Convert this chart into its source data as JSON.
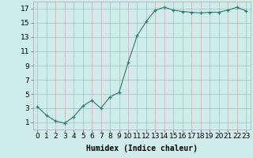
{
  "x": [
    0,
    1,
    2,
    3,
    4,
    5,
    6,
    7,
    8,
    9,
    10,
    11,
    12,
    13,
    14,
    15,
    16,
    17,
    18,
    19,
    20,
    21,
    22,
    23
  ],
  "y": [
    3.2,
    2.0,
    1.2,
    0.9,
    1.8,
    3.3,
    4.1,
    3.0,
    4.6,
    5.2,
    9.4,
    13.2,
    15.2,
    16.8,
    17.2,
    16.8,
    16.6,
    16.5,
    16.4,
    16.5,
    16.5,
    16.8,
    17.2,
    16.7
  ],
  "line_color": "#2d7a6e",
  "marker": "+",
  "marker_color": "#2d7a6e",
  "bg_color": "#ceecea",
  "grid_color": "#d4a8a8",
  "xlabel": "Humidex (Indice chaleur)",
  "xlabel_fontsize": 7,
  "ylabel_ticks": [
    1,
    3,
    5,
    7,
    9,
    11,
    13,
    15,
    17
  ],
  "xticks": [
    0,
    1,
    2,
    3,
    4,
    5,
    6,
    7,
    8,
    9,
    10,
    11,
    12,
    13,
    14,
    15,
    16,
    17,
    18,
    19,
    20,
    21,
    22,
    23
  ],
  "xlim": [
    -0.5,
    23.5
  ],
  "ylim": [
    0,
    18
  ],
  "tick_fontsize": 6.5
}
